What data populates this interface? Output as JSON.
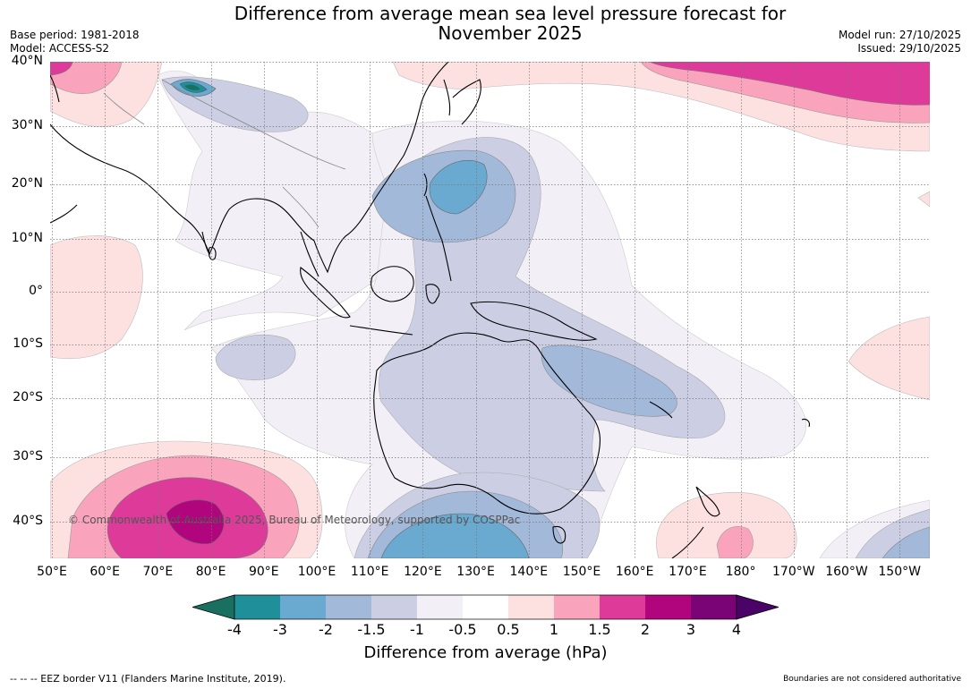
{
  "title_line1": "Difference from average mean sea level pressure forecast for",
  "title_line2": "November 2025",
  "meta_left": {
    "base_period": "Base period: 1981-2018",
    "model": "Model: ACCESS-S2"
  },
  "meta_right": {
    "model_run": "Model run: 27/10/2025",
    "issued": "Issued: 29/10/2025"
  },
  "lat_labels": [
    "40°N",
    "30°N",
    "20°N",
    "10°N",
    "0°",
    "10°S",
    "20°S",
    "30°S",
    "40°S"
  ],
  "lon_labels": [
    "50°E",
    "60°E",
    "70°E",
    "80°E",
    "90°E",
    "100°E",
    "110°E",
    "120°E",
    "130°E",
    "140°E",
    "150°E",
    "160°E",
    "170°E",
    "180°",
    "170°W",
    "160°W",
    "150°W"
  ],
  "copyright": "© Commonwealth of Australia 2025, Bureau of Meteorology, supported by COSPPac",
  "colorbar": {
    "ticks": [
      "-4",
      "-3",
      "-2",
      "-1.5",
      "-1",
      "-0.5",
      "0.5",
      "1",
      "1.5",
      "2",
      "3",
      "4"
    ],
    "colors": [
      "#1a7060",
      "#1f9099",
      "#6aaad0",
      "#a3b9d9",
      "#cccfe4",
      "#f2eff6",
      "#ffffff",
      "#fde0e0",
      "#f9a3bd",
      "#dd3a9a",
      "#b0057d",
      "#7a0476",
      "#4a0367"
    ],
    "label": "Difference from average (hPa)"
  },
  "footer_left": "--  --  -- EEZ border V11 (Flanders Marine Institute, 2019).",
  "footer_right": "Boundaries are not considered authoritative"
}
